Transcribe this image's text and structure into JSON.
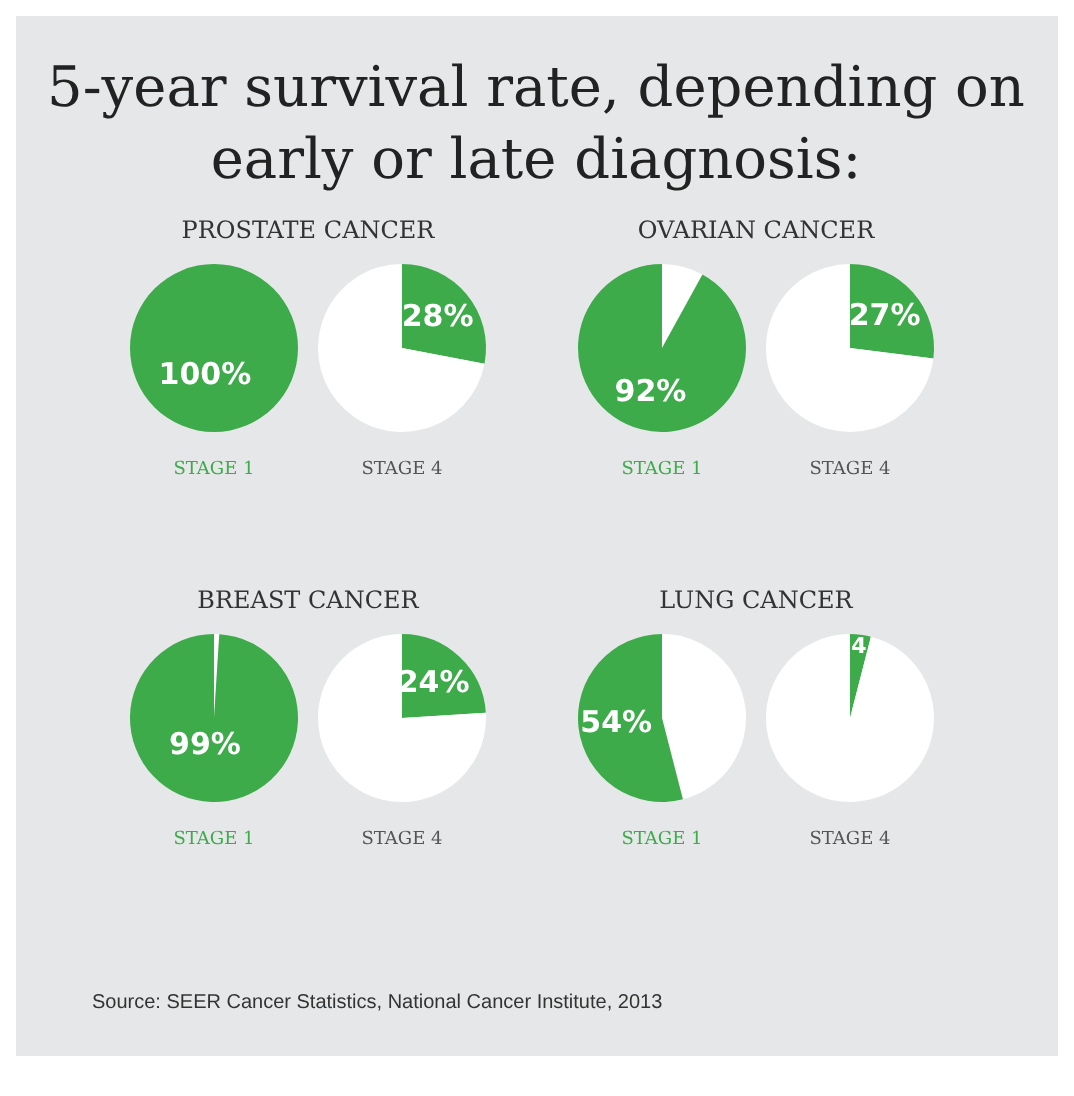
{
  "chart_data": [
    {
      "type": "other",
      "title": "5-year survival rate, depending on early or late diagnosis:",
      "annotations": [
        "Source: SEER Cancer Statistics, National Cancer Institute, 2013"
      ]
    },
    {
      "type": "pie",
      "title": "PROSTATE CANCER",
      "xlabel": "STAGE 1",
      "categories": [
        null,
        null
      ],
      "values": [
        100,
        0
      ],
      "colors": [
        "#3dab4a",
        "#ffffff"
      ],
      "value_labels": [
        "100%",
        null
      ]
    },
    {
      "type": "pie",
      "xlabel": "STAGE 4",
      "categories": [
        null,
        null
      ],
      "values": [
        28,
        72
      ],
      "colors": [
        "#3dab4a",
        "#ffffff"
      ],
      "value_labels": [
        "28%",
        null
      ]
    },
    {
      "type": "pie",
      "title": "OVARIAN CANCER",
      "xlabel": "STAGE 1",
      "categories": [
        null,
        null
      ],
      "values": [
        8,
        92
      ],
      "colors": [
        "#ffffff",
        "#3dab4a"
      ],
      "value_labels": [
        null,
        "92%"
      ]
    },
    {
      "type": "pie",
      "xlabel": "STAGE 4",
      "categories": [
        null,
        null
      ],
      "values": [
        27,
        73
      ],
      "colors": [
        "#3dab4a",
        "#ffffff"
      ],
      "value_labels": [
        "27%",
        null
      ]
    },
    {
      "type": "pie",
      "title": "BREAST CANCER",
      "xlabel": "STAGE 1",
      "categories": [
        null,
        null
      ],
      "values": [
        1,
        99
      ],
      "colors": [
        "#ffffff",
        "#3dab4a"
      ],
      "value_labels": [
        null,
        "99%"
      ]
    },
    {
      "type": "pie",
      "xlabel": "STAGE 4",
      "categories": [
        null,
        null
      ],
      "values": [
        24,
        76
      ],
      "colors": [
        "#3dab4a",
        "#ffffff"
      ],
      "value_labels": [
        "24%",
        null
      ]
    },
    {
      "type": "pie",
      "title": "LUNG CANCER",
      "xlabel": "STAGE 1",
      "categories": [
        null,
        null
      ],
      "values": [
        46,
        54
      ],
      "colors": [
        "#ffffff",
        "#3dab4a"
      ],
      "value_labels": [
        null,
        "54%"
      ]
    },
    {
      "type": "pie",
      "xlabel": "STAGE 4",
      "categories": [
        null,
        null
      ],
      "values": [
        4,
        96
      ],
      "colors": [
        "#3dab4a",
        "#ffffff"
      ],
      "value_labels": [
        "4",
        null
      ]
    }
  ]
}
